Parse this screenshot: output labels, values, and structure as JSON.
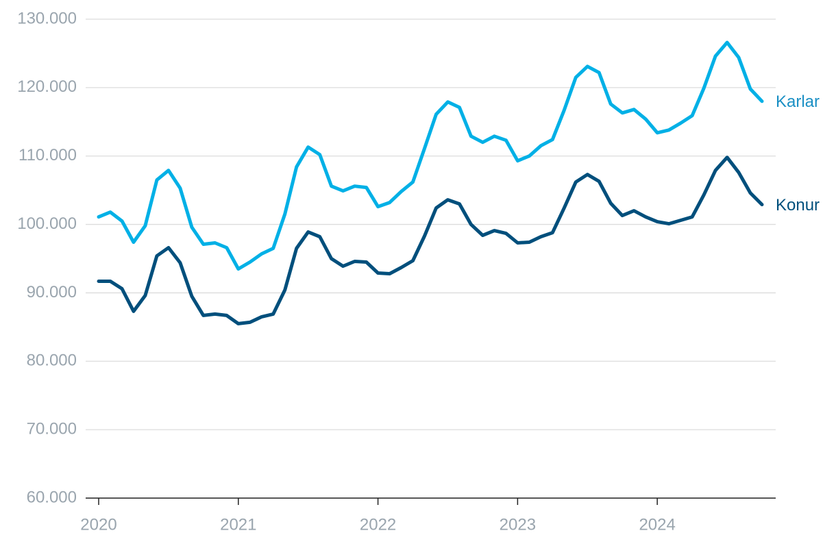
{
  "chart_data": {
    "type": "line",
    "categories": [
      "2020",
      null,
      null,
      null,
      null,
      null,
      null,
      null,
      null,
      null,
      null,
      null,
      "2021",
      null,
      null,
      null,
      null,
      null,
      null,
      null,
      null,
      null,
      null,
      null,
      "2022",
      null,
      null,
      null,
      null,
      null,
      null,
      null,
      null,
      null,
      null,
      null,
      "2023",
      null,
      null,
      null,
      null,
      null,
      null,
      null,
      null,
      null,
      null,
      null,
      "2024",
      null,
      null,
      null,
      null,
      null,
      null,
      null,
      null,
      null
    ],
    "series": [
      {
        "name": "Karlar",
        "color": "#00b0e6",
        "label_color": "#1a8fc4",
        "values": [
          101100,
          101800,
          100500,
          97400,
          99800,
          106500,
          107900,
          105300,
          99600,
          97100,
          97300,
          96600,
          93500,
          94500,
          95700,
          96500,
          101500,
          108400,
          111300,
          110200,
          105600,
          104900,
          105600,
          105400,
          102600,
          103200,
          104800,
          106200,
          111100,
          116100,
          117900,
          117100,
          112900,
          112000,
          112900,
          112300,
          109300,
          110000,
          111500,
          112400,
          116700,
          121500,
          123100,
          122200,
          117600,
          116300,
          116800,
          115400,
          113400,
          113800,
          114800,
          115900,
          119900,
          124600,
          126600,
          124400,
          119800,
          118000
        ]
      },
      {
        "name": "Konur",
        "color": "#004f7c",
        "label_color": "#004f7c",
        "values": [
          91700,
          91700,
          90600,
          87300,
          89600,
          95400,
          96600,
          94400,
          89500,
          86700,
          86900,
          86700,
          85500,
          85700,
          86500,
          86900,
          90400,
          96500,
          98900,
          98200,
          95000,
          93900,
          94600,
          94500,
          92900,
          92800,
          93700,
          94700,
          98300,
          102400,
          103600,
          103000,
          100000,
          98400,
          99100,
          98700,
          97300,
          97400,
          98200,
          98800,
          102400,
          106200,
          107300,
          106300,
          103100,
          101300,
          102000,
          101100,
          100400,
          100100,
          100600,
          101100,
          104300,
          107900,
          109800,
          107600,
          104600,
          102900
        ]
      }
    ],
    "ylim": [
      60000,
      130000
    ],
    "yticks": [
      {
        "value": 60000,
        "label": "60.000"
      },
      {
        "value": 70000,
        "label": "70.000"
      },
      {
        "value": 80000,
        "label": "80.000"
      },
      {
        "value": 90000,
        "label": "90.000"
      },
      {
        "value": 100000,
        "label": "100.000"
      },
      {
        "value": 110000,
        "label": "110.000"
      },
      {
        "value": 120000,
        "label": "120.000"
      },
      {
        "value": 130000,
        "label": "130.000"
      }
    ],
    "grid": true
  }
}
